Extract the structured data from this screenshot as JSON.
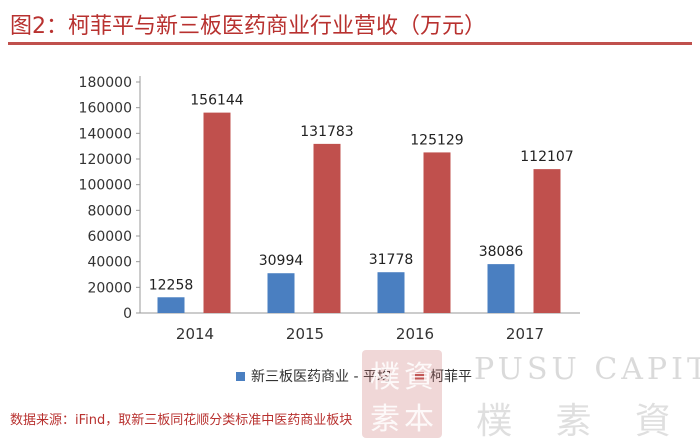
{
  "title": "图2：柯菲平与新三板医药商业行业营收（万元）",
  "source": "数据来源：iFind，取新三板同花顺分类标准中医药商业板块",
  "colors": {
    "accent": "#c0504d",
    "series_blue": "#4a7fc1",
    "series_red": "#c0504d"
  },
  "chart_data": {
    "type": "bar",
    "categories": [
      "2014",
      "2015",
      "2016",
      "2017"
    ],
    "series": [
      {
        "name": "新三板医药商业 - 平均",
        "values": [
          12258,
          30994,
          31778,
          38086
        ],
        "color": "#4a7fc1"
      },
      {
        "name": "柯菲平",
        "values": [
          156144,
          131783,
          125129,
          112107
        ],
        "color": "#c0504d"
      }
    ],
    "ylim": [
      0,
      180000
    ],
    "yticks": [
      0,
      20000,
      40000,
      60000,
      80000,
      100000,
      120000,
      140000,
      160000,
      180000
    ],
    "legend_position": "bottom",
    "grid": false
  },
  "watermark": {
    "stamp_chars": [
      "樸",
      "素",
      "資",
      "本"
    ],
    "en": "PUSU CAPITAL",
    "cn": "樸 素 資 本"
  }
}
